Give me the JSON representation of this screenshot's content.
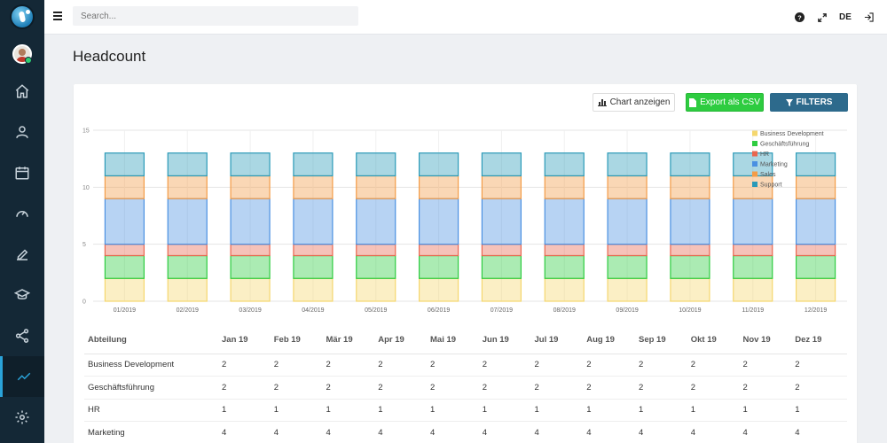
{
  "topbar": {
    "search_placeholder": "Search...",
    "lang": "DE"
  },
  "page": {
    "title": "Headcount"
  },
  "buttons": {
    "chart": "Chart anzeigen",
    "export": "Export als CSV",
    "filters": "FILTERS"
  },
  "sidebar": {
    "icons": [
      "home-icon",
      "users-icon",
      "calendar-icon",
      "speedometer-icon",
      "edit-icon",
      "graduation-cap-icon",
      "share-icon",
      "chart-line-icon",
      "settings-icon"
    ],
    "active": "chart-line-icon"
  },
  "chart_data": {
    "type": "bar",
    "stacked": true,
    "categories": [
      "01/2019",
      "02/2019",
      "03/2019",
      "04/2019",
      "05/2019",
      "06/2019",
      "07/2019",
      "08/2019",
      "09/2019",
      "10/2019",
      "11/2019",
      "12/2019"
    ],
    "series": [
      {
        "name": "Business Development",
        "color": "#f5d76e",
        "values": [
          2,
          2,
          2,
          2,
          2,
          2,
          2,
          2,
          2,
          2,
          2,
          2
        ]
      },
      {
        "name": "Geschäftsführung",
        "color": "#2ecc40",
        "values": [
          2,
          2,
          2,
          2,
          2,
          2,
          2,
          2,
          2,
          2,
          2,
          2
        ]
      },
      {
        "name": "HR",
        "color": "#e8664f",
        "values": [
          1,
          1,
          1,
          1,
          1,
          1,
          1,
          1,
          1,
          1,
          1,
          1
        ]
      },
      {
        "name": "Marketing",
        "color": "#4a90e2",
        "values": [
          4,
          4,
          4,
          4,
          4,
          4,
          4,
          4,
          4,
          4,
          4,
          4
        ]
      },
      {
        "name": "Sales",
        "color": "#f39c47",
        "values": [
          2,
          2,
          2,
          2,
          2,
          2,
          2,
          2,
          2,
          2,
          2,
          2
        ]
      },
      {
        "name": "Support",
        "color": "#2a9ab8",
        "values": [
          2,
          2,
          2,
          2,
          2,
          2,
          2,
          2,
          2,
          2,
          2,
          2
        ]
      }
    ],
    "yticks": [
      "0",
      "5",
      "10",
      "15"
    ],
    "ylim": [
      0,
      15
    ],
    "legend": "top-right",
    "grid": true
  },
  "table": {
    "headers": [
      "Abteilung",
      "Jan 19",
      "Feb 19",
      "Mär 19",
      "Apr 19",
      "Mai 19",
      "Jun 19",
      "Jul 19",
      "Aug 19",
      "Sep 19",
      "Okt 19",
      "Nov 19",
      "Dez 19"
    ],
    "rows": [
      {
        "name": "Business Development",
        "values": [
          "2",
          "2",
          "2",
          "2",
          "2",
          "2",
          "2",
          "2",
          "2",
          "2",
          "2",
          "2"
        ]
      },
      {
        "name": "Geschäftsführung",
        "values": [
          "2",
          "2",
          "2",
          "2",
          "2",
          "2",
          "2",
          "2",
          "2",
          "2",
          "2",
          "2"
        ]
      },
      {
        "name": "HR",
        "values": [
          "1",
          "1",
          "1",
          "1",
          "1",
          "1",
          "1",
          "1",
          "1",
          "1",
          "1",
          "1"
        ]
      },
      {
        "name": "Marketing",
        "values": [
          "4",
          "4",
          "4",
          "4",
          "4",
          "4",
          "4",
          "4",
          "4",
          "4",
          "4",
          "4"
        ]
      }
    ]
  }
}
